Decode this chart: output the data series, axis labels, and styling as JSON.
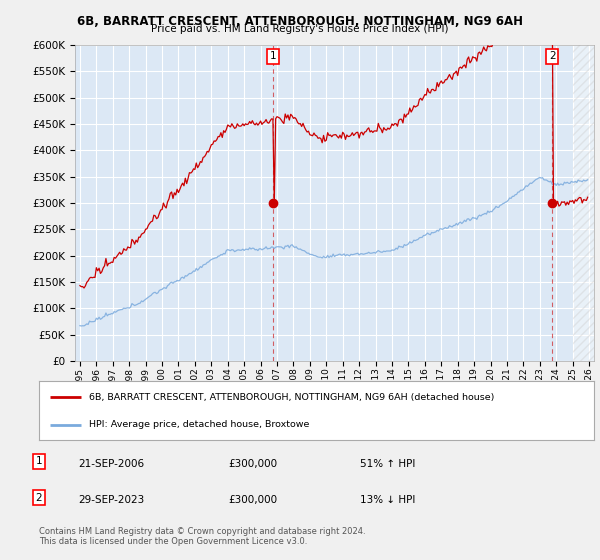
{
  "title": "6B, BARRATT CRESCENT, ATTENBOROUGH, NOTTINGHAM, NG9 6AH",
  "subtitle": "Price paid vs. HM Land Registry's House Price Index (HPI)",
  "legend_line1": "6B, BARRATT CRESCENT, ATTENBOROUGH, NOTTINGHAM, NG9 6AH (detached house)",
  "legend_line2": "HPI: Average price, detached house, Broxtowe",
  "annotation1_date": "21-SEP-2006",
  "annotation1_price": "£300,000",
  "annotation1_hpi": "51% ↑ HPI",
  "annotation2_date": "29-SEP-2023",
  "annotation2_price": "£300,000",
  "annotation2_hpi": "13% ↓ HPI",
  "footnote": "Contains HM Land Registry data © Crown copyright and database right 2024.\nThis data is licensed under the Open Government Licence v3.0.",
  "red_color": "#cc0000",
  "blue_color": "#7aaadd",
  "background_color": "#f0f0f0",
  "plot_bg_color": "#dce8f5",
  "grid_color": "#ffffff",
  "ylim": [
    0,
    600000
  ],
  "yticks": [
    0,
    50000,
    100000,
    150000,
    200000,
    250000,
    300000,
    350000,
    400000,
    450000,
    500000,
    550000,
    600000
  ],
  "purchase1_year": 2006.75,
  "purchase1_price": 300000,
  "purchase2_year": 2023.75,
  "purchase2_price": 300000
}
